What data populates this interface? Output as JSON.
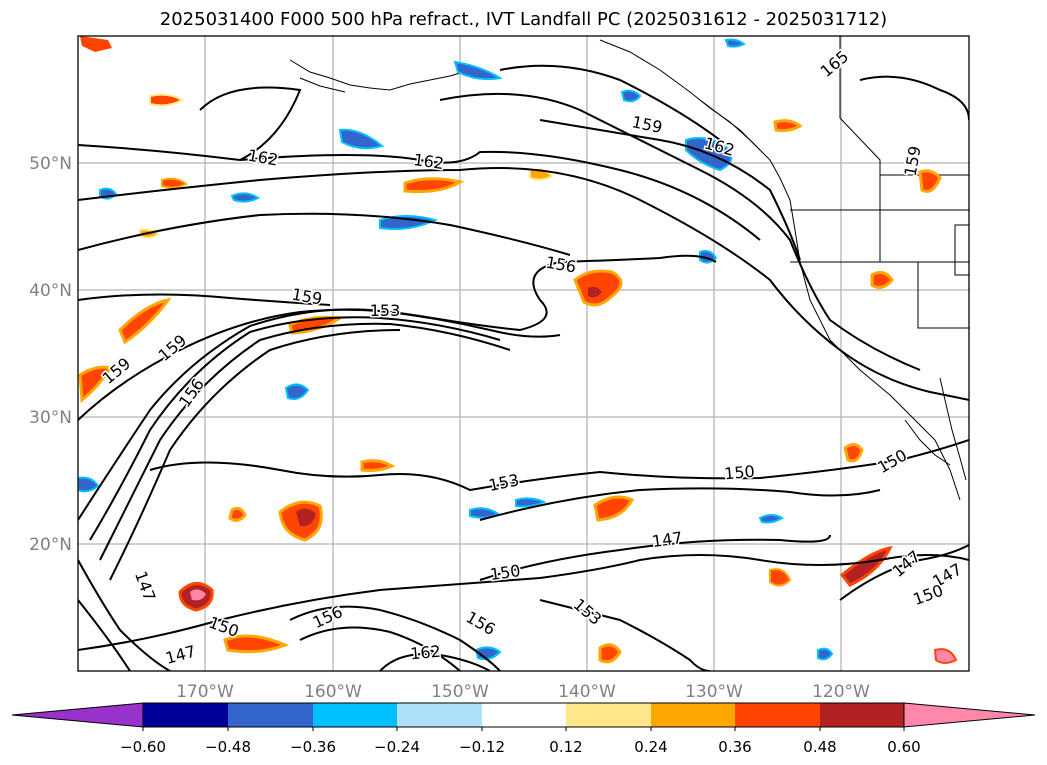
{
  "title": "2025031400 F000 500 hPa refract., IVT Landfall PC (2025031612 - 2025031712)",
  "lat_labels": [
    "50°N",
    "40°N",
    "30°N",
    "20°N"
  ],
  "lon_labels": [
    "170°W",
    "160°W",
    "150°W",
    "140°W",
    "130°W",
    "120°W"
  ],
  "contour_labels": [
    "162",
    "162",
    "159",
    "156",
    "159",
    "159",
    "156",
    "153",
    "153",
    "150",
    "150",
    "147",
    "147",
    "147",
    "147",
    "147",
    "150",
    "150",
    "156",
    "156",
    "159",
    "153",
    "162",
    "165",
    "162",
    "159",
    "150"
  ],
  "colorbar": {
    "tick_labels": [
      "−0.60",
      "−0.48",
      "−0.36",
      "−0.24",
      "−0.12",
      "0.12",
      "0.24",
      "0.36",
      "0.48",
      "0.60"
    ],
    "colors": [
      "#9932CC",
      "#000099",
      "#3366CC",
      "#00BFFF",
      "#ADE1FA",
      "#FFFFFF",
      "#FFE88C",
      "#FFA500",
      "#FF4500",
      "#B22222",
      "#FF88AA"
    ]
  },
  "colors": {
    "contour": "#000000",
    "grid": "#A9A9A9",
    "axis_label": "#808080"
  }
}
